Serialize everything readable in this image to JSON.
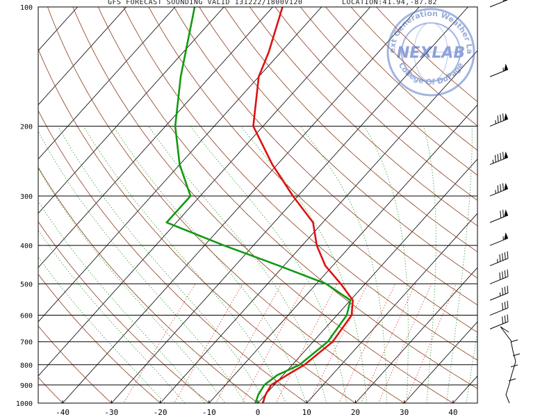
{
  "header": {
    "title": "GFS FORECAST SOUNDING VALID 131222/1800V120",
    "location": "LOCATION:41.94,-87.82"
  },
  "watermark": {
    "logo_text": "NEXLAB",
    "ring_text_top": "Next Generation Weather Lab",
    "ring_text_bottom": "College Of DuPage"
  },
  "chart_data": {
    "type": "line",
    "title": "GFS FORECAST SOUNDING VALID 131222/1800V120",
    "diagram": "skew-T log-P",
    "xlabel": "",
    "ylabel": "",
    "y_scale": "log",
    "ylim": [
      1000,
      100
    ],
    "xlim": [
      -45,
      45
    ],
    "pressure_ticks": [
      100,
      200,
      300,
      400,
      500,
      600,
      700,
      800,
      900,
      1000
    ],
    "temperature_ticks": [
      -40,
      -30,
      -20,
      -10,
      0,
      10,
      20,
      30,
      40
    ],
    "series": [
      {
        "role": "temperature",
        "color": "#dd1111",
        "points": [
          {
            "p": 1000,
            "t": 1.0
          },
          {
            "p": 950,
            "t": 0.0
          },
          {
            "p": 900,
            "t": -0.6
          },
          {
            "p": 850,
            "t": 0.8
          },
          {
            "p": 800,
            "t": 2.5
          },
          {
            "p": 700,
            "t": 4.0
          },
          {
            "p": 600,
            "t": 3.0
          },
          {
            "p": 550,
            "t": 0.5
          },
          {
            "p": 500,
            "t": -5.0
          },
          {
            "p": 450,
            "t": -11.5
          },
          {
            "p": 400,
            "t": -17.0
          },
          {
            "p": 350,
            "t": -22.0
          },
          {
            "p": 300,
            "t": -31.0
          },
          {
            "p": 250,
            "t": -41.0
          },
          {
            "p": 200,
            "t": -52.0
          },
          {
            "p": 150,
            "t": -60.0
          },
          {
            "p": 130,
            "t": -62.5
          },
          {
            "p": 100,
            "t": -68.0
          }
        ]
      },
      {
        "role": "dewpoint",
        "color": "#119911",
        "points": [
          {
            "p": 1000,
            "t": -0.5
          },
          {
            "p": 950,
            "t": -1.5
          },
          {
            "p": 900,
            "t": -2.0
          },
          {
            "p": 850,
            "t": -1.2
          },
          {
            "p": 800,
            "t": 1.5
          },
          {
            "p": 700,
            "t": 3.0
          },
          {
            "p": 600,
            "t": 2.0
          },
          {
            "p": 550,
            "t": 0.0
          },
          {
            "p": 500,
            "t": -8.0
          },
          {
            "p": 450,
            "t": -21.0
          },
          {
            "p": 400,
            "t": -36.0
          },
          {
            "p": 350,
            "t": -52.0
          },
          {
            "p": 300,
            "t": -52.0
          },
          {
            "p": 250,
            "t": -60.0
          },
          {
            "p": 200,
            "t": -68.0
          },
          {
            "p": 150,
            "t": -76.0
          },
          {
            "p": 100,
            "t": -86.0
          }
        ]
      }
    ],
    "wind_barbs": [
      {
        "p": 100,
        "speed_kt": 60
      },
      {
        "p": 150,
        "speed_kt": 55
      },
      {
        "p": 200,
        "speed_kt": 85
      },
      {
        "p": 250,
        "speed_kt": 95
      },
      {
        "p": 300,
        "speed_kt": 85
      },
      {
        "p": 350,
        "speed_kt": 70
      },
      {
        "p": 400,
        "speed_kt": 55
      },
      {
        "p": 450,
        "speed_kt": 45
      },
      {
        "p": 500,
        "speed_kt": 40
      },
      {
        "p": 550,
        "speed_kt": 35
      },
      {
        "p": 600,
        "speed_kt": 30
      },
      {
        "p": 650,
        "speed_kt": 30
      }
    ],
    "grid": true,
    "background_lines": [
      "isotherms (skewed, black)",
      "dry adiabats (brown)",
      "moist adiabats (green dotted)",
      "mixing ratio (red dotted)"
    ]
  }
}
